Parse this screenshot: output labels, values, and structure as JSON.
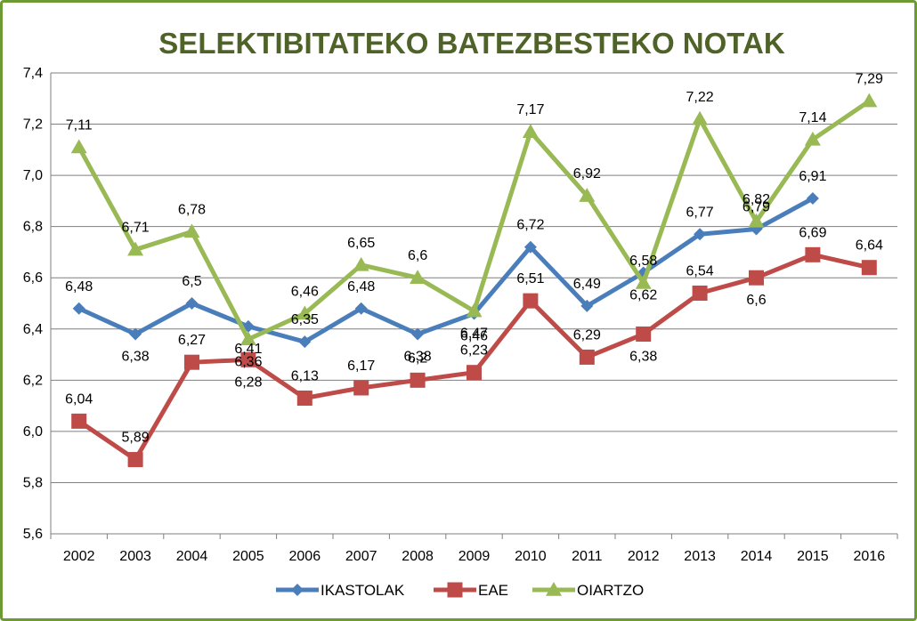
{
  "chart_data": {
    "type": "line",
    "title": "SELEKTIBITATEKO BATEZBESTEKO NOTAK",
    "xlabel": "",
    "ylabel": "",
    "categories": [
      "2002",
      "2003",
      "2004",
      "2005",
      "2006",
      "2007",
      "2008",
      "2009",
      "2010",
      "2011",
      "2012",
      "2013",
      "2014",
      "2015",
      "2016"
    ],
    "ylim": [
      5.6,
      7.4
    ],
    "yticks": [
      "5,6",
      "5,8",
      "6,0",
      "6,2",
      "6,4",
      "6,6",
      "6,8",
      "7,0",
      "7,2",
      "7,4"
    ],
    "grid": true,
    "legend_position": "bottom",
    "series": [
      {
        "name": "IKASTOLAK",
        "color": "#4a7ebb",
        "marker": "diamond",
        "values": [
          6.48,
          6.38,
          6.5,
          6.41,
          6.35,
          6.48,
          6.38,
          6.46,
          6.72,
          6.49,
          6.62,
          6.77,
          6.79,
          6.91,
          null
        ],
        "labels": [
          "6,48",
          "6,38",
          "6,5",
          "6,41",
          "6,35",
          "6,48",
          "6,38",
          "6,46",
          "6,72",
          "6,49",
          "6,62",
          "6,77",
          "6,79",
          "6,91",
          ""
        ]
      },
      {
        "name": "EAE",
        "color": "#be4b48",
        "marker": "square",
        "values": [
          6.04,
          5.89,
          6.27,
          6.28,
          6.13,
          6.17,
          6.2,
          6.23,
          6.51,
          6.29,
          6.38,
          6.54,
          6.6,
          6.69,
          6.64
        ],
        "labels": [
          "6,04",
          "5,89",
          "6,27",
          "6,28",
          "6,13",
          "6,17",
          "6,2",
          "6,23",
          "6,51",
          "6,29",
          "6,38",
          "6,54",
          "6,6",
          "6,69",
          "6,64"
        ]
      },
      {
        "name": "OIARTZO",
        "color": "#98b954",
        "marker": "triangle",
        "values": [
          7.11,
          6.71,
          6.78,
          6.36,
          6.46,
          6.65,
          6.6,
          6.47,
          7.17,
          6.92,
          6.58,
          7.22,
          6.82,
          7.14,
          7.29
        ],
        "labels": [
          "7,11",
          "6,71",
          "6,78",
          "6,36",
          "6,46",
          "6,65",
          "6,6",
          "6,47",
          "7,17",
          "6,92",
          "6,58",
          "7,22",
          "6,82",
          "7,14",
          "7,29"
        ]
      }
    ]
  }
}
